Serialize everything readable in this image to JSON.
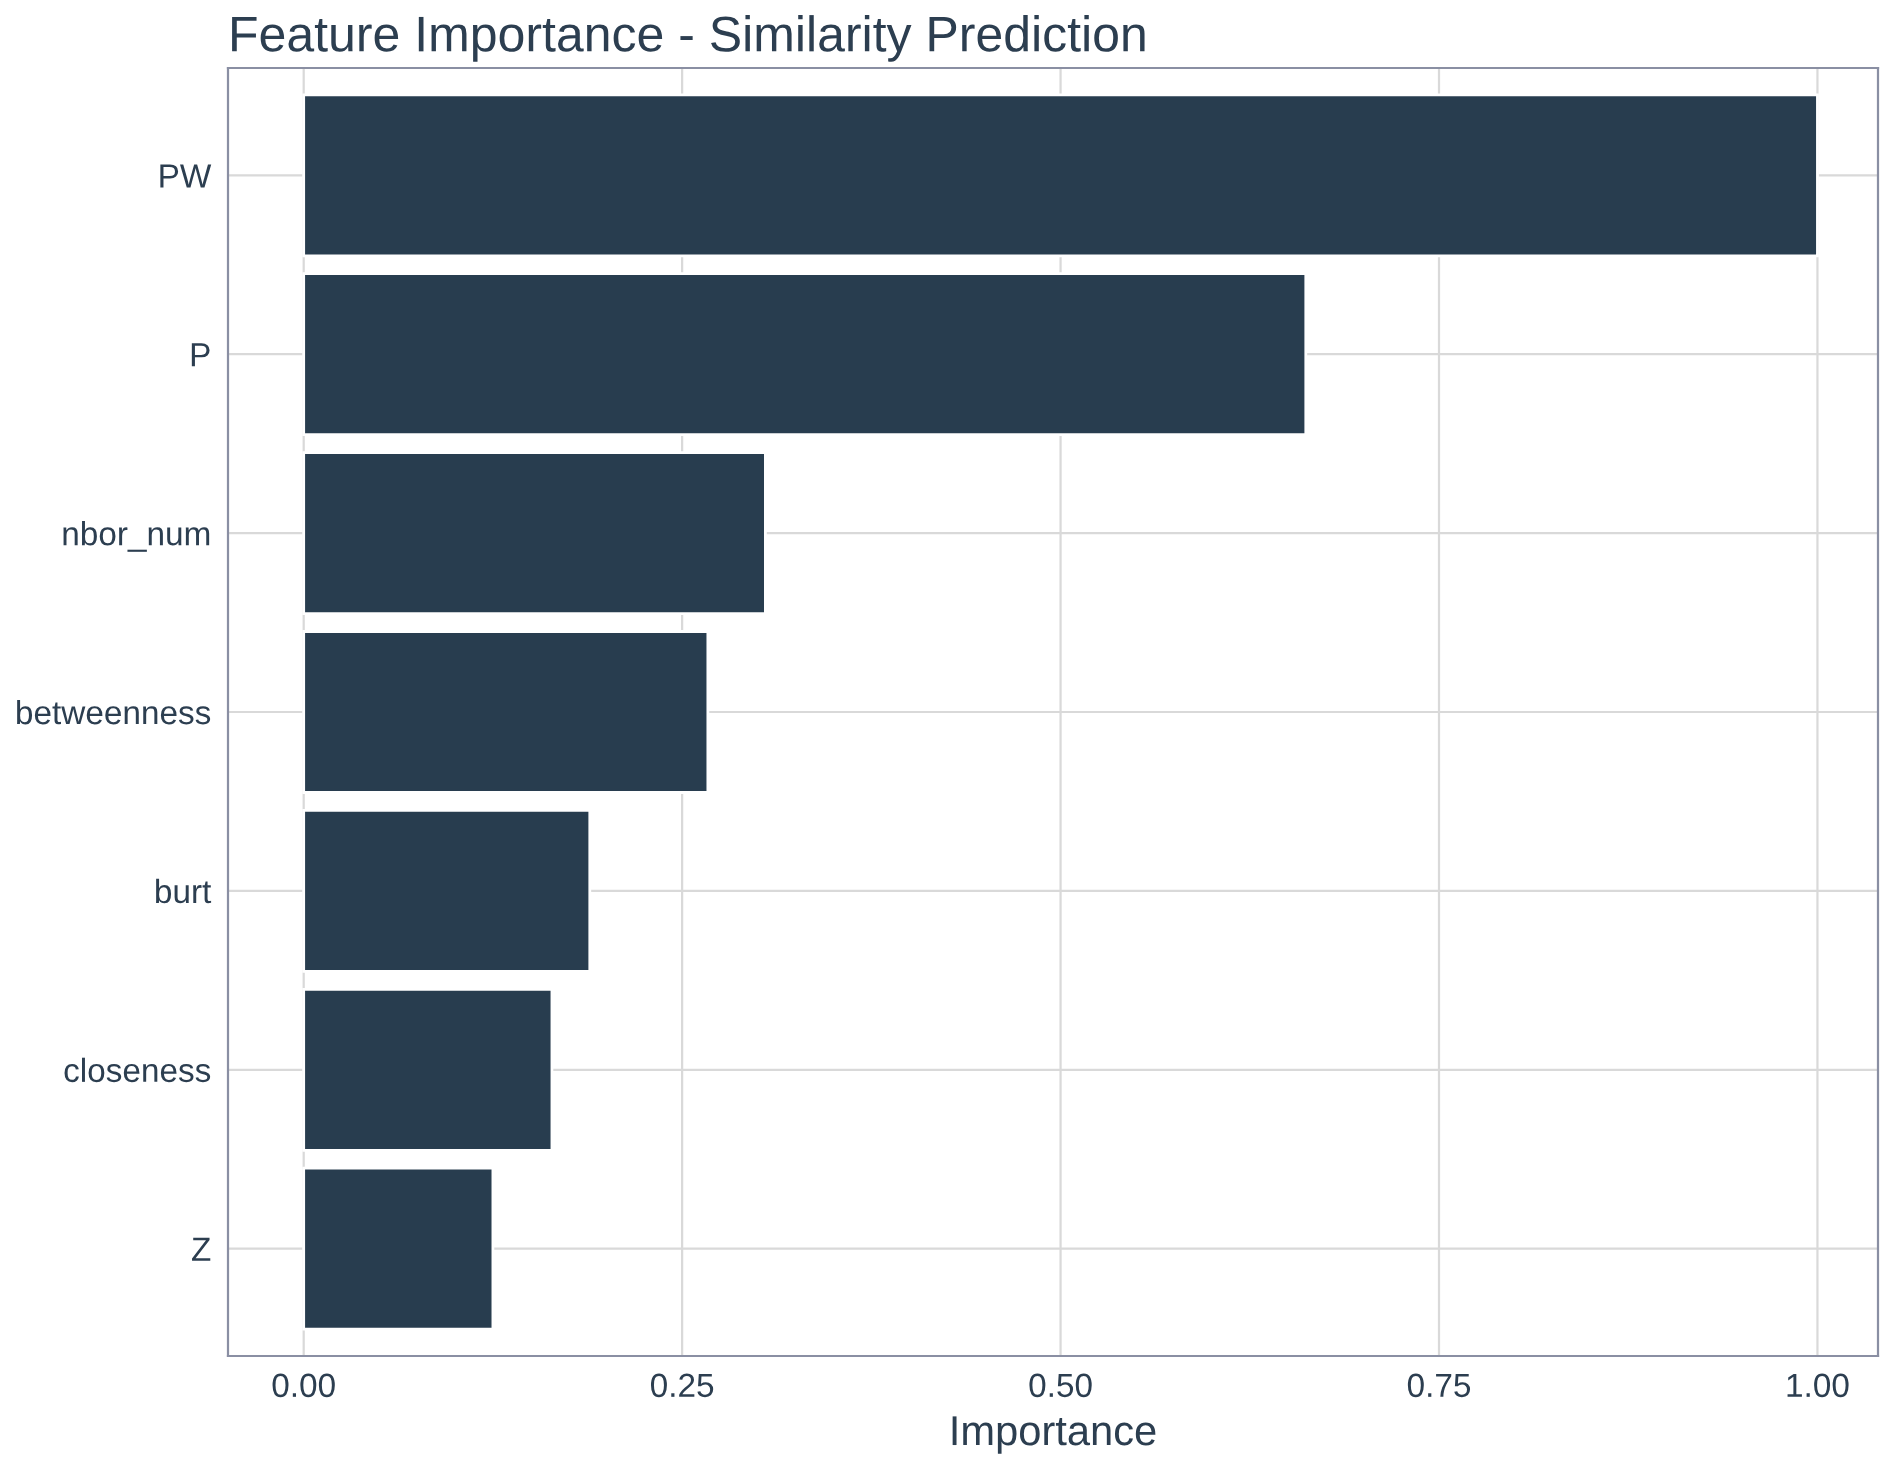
{
  "chart_data": {
    "type": "bar",
    "orientation": "horizontal",
    "title": "Feature Importance - Similarity Prediction",
    "xlabel": "Importance",
    "categories": [
      "PW",
      "P",
      "nbor_num",
      "betweenness",
      "burt",
      "closeness",
      "Z"
    ],
    "values": [
      1.0,
      0.662,
      0.305,
      0.267,
      0.189,
      0.164,
      0.125
    ],
    "color": "#283d4f",
    "xlim": [
      -0.05,
      1.04
    ],
    "xticks": [
      {
        "value": 0,
        "label": "0.00"
      },
      {
        "value": 0.25,
        "label": "0.25"
      },
      {
        "value": 0.5,
        "label": "0.50"
      },
      {
        "value": 0.75,
        "label": "0.75"
      },
      {
        "value": 1.0,
        "label": "1.00"
      }
    ],
    "grid": true,
    "legend": false
  }
}
